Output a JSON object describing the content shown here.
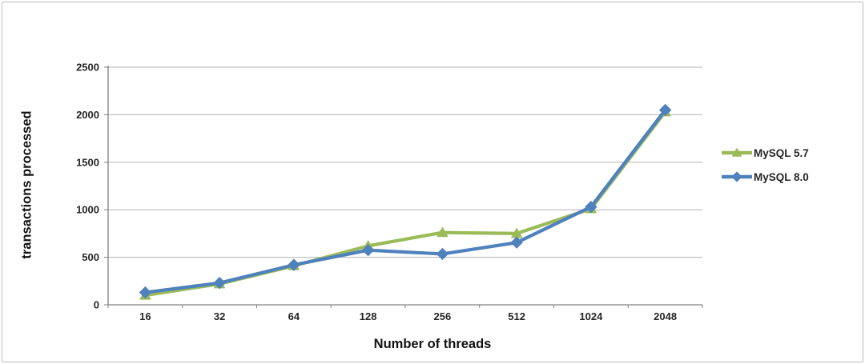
{
  "chart_data": {
    "type": "line",
    "title": "",
    "xlabel": "Number of threads",
    "ylabel": "transactions processed",
    "categories": [
      "16",
      "32",
      "64",
      "128",
      "256",
      "512",
      "1024",
      "2048"
    ],
    "series": [
      {
        "name": "MySQL 5.7",
        "color": "#9bbb59",
        "marker": "triangle",
        "values": [
          100,
          220,
          410,
          620,
          760,
          750,
          1010,
          2030
        ]
      },
      {
        "name": "MySQL 8.0",
        "color": "#4f81bd",
        "marker": "diamond",
        "values": [
          130,
          230,
          420,
          575,
          535,
          655,
          1030,
          2050
        ]
      }
    ],
    "ylim": [
      0,
      2500
    ],
    "yticks": [
      0,
      500,
      1000,
      1500,
      2000,
      2500
    ],
    "grid": true,
    "legend_position": "right",
    "colors": {
      "gridline": "#b3b3b3",
      "axis": "#808080",
      "tick_text": "#262626",
      "axis_title": "#111111",
      "background": "#ffffff",
      "frame_border": "#bcbcbc"
    }
  }
}
